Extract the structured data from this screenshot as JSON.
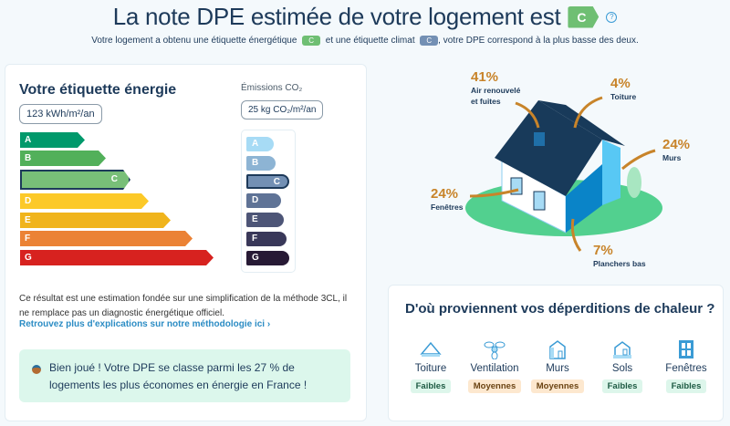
{
  "header": {
    "title": "La note DPE estimée de votre logement est",
    "grade": "C",
    "help_icon": "question-circle-icon",
    "subtitle_1": "Votre logement a obtenu une étiquette énergétique",
    "energy_grade": "C",
    "subtitle_2": "et une étiquette climat",
    "climate_grade": "C",
    "subtitle_3": ", votre DPE correspond à la plus basse des deux."
  },
  "energy": {
    "title": "Votre étiquette énergie",
    "value": "123 kWh/m²/an",
    "selected": "C",
    "bars": [
      {
        "label": "A",
        "color": "#00996b"
      },
      {
        "label": "B",
        "color": "#52b05a"
      },
      {
        "label": "C",
        "color": "#78bf78"
      },
      {
        "label": "D",
        "color": "#fcc928"
      },
      {
        "label": "E",
        "color": "#f0b41c"
      },
      {
        "label": "F",
        "color": "#eb8235"
      },
      {
        "label": "G",
        "color": "#d7221f"
      }
    ]
  },
  "climate": {
    "title": "Émissions CO₂",
    "value": "25 kg CO₂/m²/an",
    "selected": "C",
    "bars": [
      {
        "label": "A",
        "color": "#a7dbf5"
      },
      {
        "label": "B",
        "color": "#8db4d4"
      },
      {
        "label": "C",
        "color": "#7390b4"
      },
      {
        "label": "D",
        "color": "#5f7396"
      },
      {
        "label": "E",
        "color": "#4d5577"
      },
      {
        "label": "F",
        "color": "#393859"
      },
      {
        "label": "G",
        "color": "#271a35"
      }
    ]
  },
  "disclaimer": "Ce résultat est une estimation fondée sur une simplification de la méthode 3CL, il ne remplace pas un diagnostic énergétique officiel.",
  "methodology_link": "Retrouvez plus d'explications sur notre méthodologie ici ›",
  "congrats": {
    "icon": "medal-icon",
    "text": "Bien joué ! Votre DPE se classe parmi les 27 % de logements les plus économes en énergie en France !"
  },
  "losses": [
    {
      "pct": "41%",
      "label": "Air renouvelé et fuites"
    },
    {
      "pct": "4%",
      "label": "Toiture"
    },
    {
      "pct": "24%",
      "label": "Murs"
    },
    {
      "pct": "24%",
      "label": "Fenêtres"
    },
    {
      "pct": "7%",
      "label": "Planchers bas"
    }
  ],
  "sources": {
    "title": "D'où proviennent vos déperditions de chaleur ?",
    "items": [
      {
        "name": "Toiture",
        "level": "Faibles",
        "icon": "roof-icon"
      },
      {
        "name": "Ventilation",
        "level": "Moyennes",
        "icon": "fan-icon"
      },
      {
        "name": "Murs",
        "level": "Moyennes",
        "icon": "wall-house-icon"
      },
      {
        "name": "Sols",
        "level": "Faibles",
        "icon": "floor-house-icon"
      },
      {
        "name": "Fenêtres",
        "level": "Faibles",
        "icon": "window-icon"
      }
    ]
  }
}
